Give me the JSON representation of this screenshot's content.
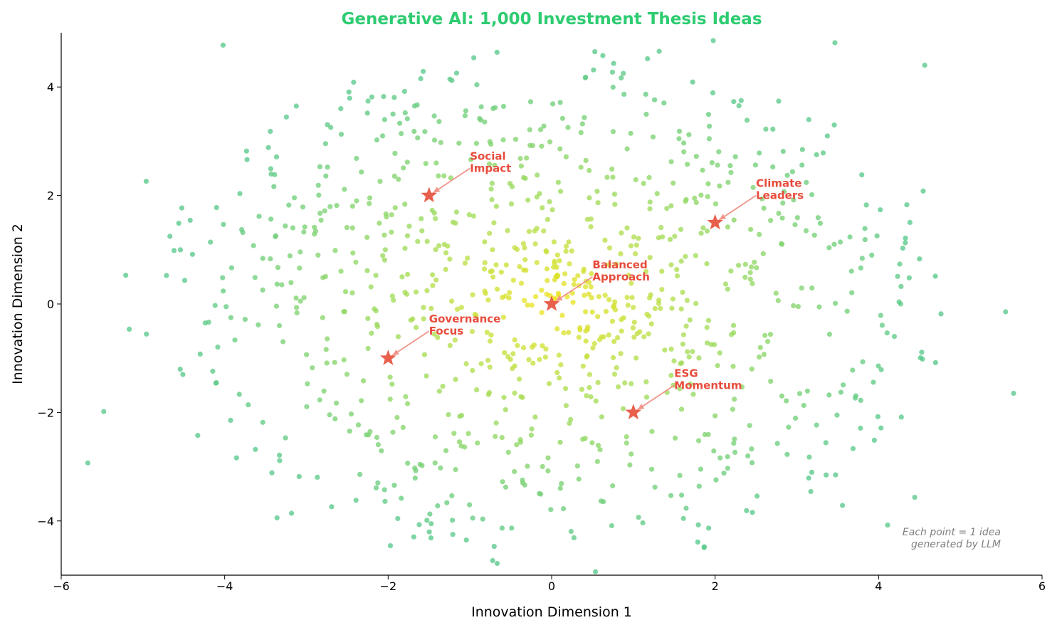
{
  "chart_data": {
    "type": "scatter",
    "title": "Generative AI: 1,000 Investment Thesis Ideas",
    "xlabel": "Innovation Dimension 1",
    "ylabel": "Innovation Dimension 2",
    "xlim": [
      -6,
      6
    ],
    "ylim": [
      -5,
      5
    ],
    "xticks": [
      -6,
      -4,
      -2,
      0,
      2,
      4,
      6
    ],
    "yticks": [
      -4,
      -2,
      0,
      2,
      4
    ],
    "xtick_labels": [
      "−6",
      "−4",
      "−2",
      "0",
      "2",
      "4",
      "6"
    ],
    "ytick_labels": [
      "−4",
      "−2",
      "0",
      "2",
      "4"
    ],
    "grid": false,
    "point_count": 1000,
    "distribution": "radial normal cloud centred at (0, 0); colour shifts from yellow at the centre to teal-green at the edges",
    "point_colors": [
      "#f2e41c",
      "#a6dd55",
      "#58c98c"
    ],
    "highlighted": [
      {
        "label": "Balanced\nApproach",
        "x": 0,
        "y": 0,
        "text_x": 0.5,
        "text_y": 0.5
      },
      {
        "label": "Social\nImpact",
        "x": -1.5,
        "y": 2,
        "text_x": -1.0,
        "text_y": 2.5
      },
      {
        "label": "Climate\nLeaders",
        "x": 2,
        "y": 1.5,
        "text_x": 2.5,
        "text_y": 2.0
      },
      {
        "label": "Governance\nFocus",
        "x": -2,
        "y": -1,
        "text_x": -1.5,
        "text_y": -0.5
      },
      {
        "label": "ESG\nMomentum",
        "x": 1,
        "y": -2,
        "text_x": 1.5,
        "text_y": -1.5
      }
    ],
    "note": "Each point = 1 idea\ngenerated by LLM"
  },
  "colors": {
    "title": "#2ecc71",
    "star": "#e8604c",
    "annotation": "#e74c3c",
    "arrow": "#f1948a",
    "axis": "#000000"
  }
}
